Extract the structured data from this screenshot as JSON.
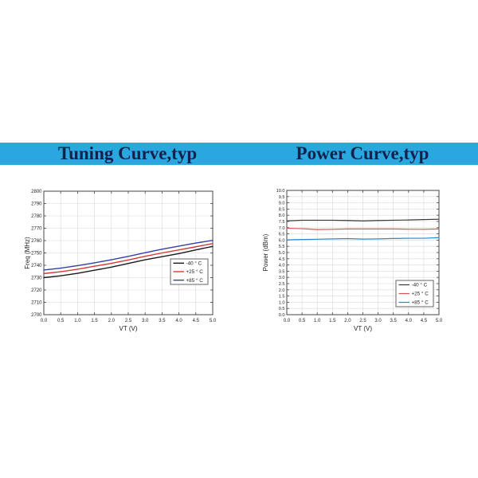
{
  "banner": {
    "background": "#29a8e0",
    "text_color": "#15214b",
    "titles": [
      {
        "label": "Tuning Curve,typ"
      },
      {
        "label": "Power Curve,typ"
      }
    ]
  },
  "chart_data": [
    {
      "type": "line",
      "title": "Tuning Curve,typ",
      "xlabel": "VT (V)",
      "ylabel": "Freq (MHz)",
      "xlim": [
        0,
        5
      ],
      "xtick_step": 0.5,
      "xtick_decimals": 1,
      "ylim": [
        2700,
        2800
      ],
      "ytick_step": 10,
      "ytick_decimals": 0,
      "grid": true,
      "legend_position": "center-right",
      "x": [
        0,
        0.5,
        1.0,
        1.5,
        2.0,
        2.5,
        3.0,
        3.5,
        4.0,
        4.5,
        5.0
      ],
      "series": [
        {
          "name": "-40 ° C",
          "color": "#1a1a1a",
          "values": [
            2730,
            2731.5,
            2733.5,
            2736,
            2738.5,
            2741.5,
            2744.5,
            2747,
            2749.5,
            2752.5,
            2755.3
          ]
        },
        {
          "name": "+25 ° C",
          "color": "#d43a32",
          "values": [
            2733.3,
            2734.8,
            2736.8,
            2739.2,
            2741.6,
            2744.3,
            2747.3,
            2750,
            2752.5,
            2755,
            2757.6
          ]
        },
        {
          "name": "+85 ° C",
          "color": "#3340a8",
          "values": [
            2736.2,
            2737.7,
            2739.7,
            2742,
            2744.5,
            2747.2,
            2750.2,
            2753,
            2755.5,
            2758,
            2760.2
          ]
        }
      ]
    },
    {
      "type": "line",
      "title": "Power Curve,typ",
      "xlabel": "VT (V)",
      "ylabel": "Power (dBm)",
      "xlim": [
        0,
        5
      ],
      "xtick_step": 0.5,
      "xtick_decimals": 1,
      "ylim": [
        0,
        10
      ],
      "ytick_step": 0.5,
      "ytick_decimals": 1,
      "grid": true,
      "legend_position": "bottom-right",
      "x": [
        0,
        0.5,
        1.0,
        1.5,
        2.0,
        2.5,
        3.0,
        3.5,
        4.0,
        4.5,
        5.0
      ],
      "series": [
        {
          "name": "-40 ° C",
          "color": "#3a3a3a",
          "values": [
            7.55,
            7.6,
            7.6,
            7.6,
            7.58,
            7.55,
            7.58,
            7.6,
            7.62,
            7.65,
            7.68
          ]
        },
        {
          "name": "+25 ° C",
          "color": "#d9534f",
          "values": [
            6.95,
            6.92,
            6.85,
            6.87,
            6.9,
            6.9,
            6.9,
            6.9,
            6.88,
            6.87,
            6.9
          ]
        },
        {
          "name": "+85 ° C",
          "color": "#2e86c4",
          "values": [
            6.02,
            6.05,
            6.07,
            6.1,
            6.12,
            6.08,
            6.1,
            6.13,
            6.15,
            6.15,
            6.2
          ]
        }
      ]
    }
  ]
}
